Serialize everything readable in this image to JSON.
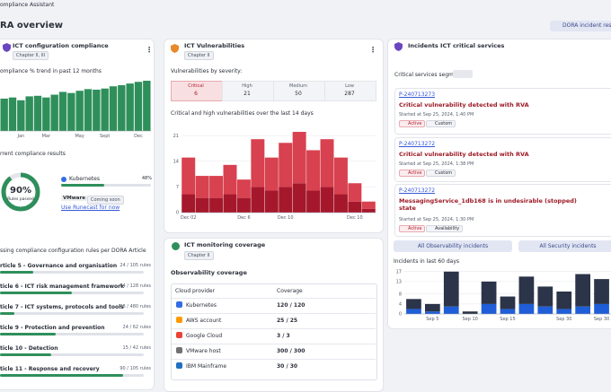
{
  "header": {
    "app": "ompliance Assistant",
    "title": "RA overview",
    "button": "DORA incident respo"
  },
  "config": {
    "title": "ICT configuration compliance",
    "chapter": "Chapter II, III",
    "trend_title": "ompliance % trend in past 12 months",
    "results_title": "rrent compliance results",
    "donut": {
      "value": 90,
      "value_label": "90%",
      "label": "Rules passed"
    },
    "platform": {
      "name": "Kubernetes",
      "value": 48,
      "value_label": "48%"
    },
    "vmware": {
      "name": "VMware",
      "badge": "Coming soon",
      "link": "Use Runecast for now"
    },
    "articles_title": "ssing compliance configuration rules per DORA Article",
    "articles": [
      {
        "name": "rticle 5 - Governance and organisation",
        "passed": 24,
        "total": 105,
        "label": "24 / 105 rules"
      },
      {
        "name": "ticle 6 - ICT risk management framework",
        "passed": 64,
        "total": 128,
        "label": "64 / 128 rules"
      },
      {
        "name": "ticle 7 - ICT systems, protocols and tools",
        "passed": 48,
        "total": 480,
        "label": "48 / 480 rules"
      },
      {
        "name": "ticle 9 - Protection and prevention",
        "passed": 24,
        "total": 62,
        "label": "24 / 62 rules"
      },
      {
        "name": "ticle 10 - Detection",
        "passed": 15,
        "total": 42,
        "label": "15 / 42 rules"
      },
      {
        "name": "ticle 11 - Response and recovery",
        "passed": 90,
        "total": 105,
        "label": "90 / 105 rules"
      }
    ]
  },
  "vulnerabilities": {
    "title": "ICT Vulnerabilities",
    "chapter": "Chapter II",
    "severity_title": "Vulnerabilities by severity:",
    "severity": [
      {
        "name": "Critical",
        "value": 6
      },
      {
        "name": "High",
        "value": 21
      },
      {
        "name": "Medium",
        "value": 50
      },
      {
        "name": "Low",
        "value": 287
      }
    ],
    "chart_title": "Critical and high vulnerabilities over the last 14 days"
  },
  "monitoring": {
    "title": "ICT monitoring coverage",
    "chapter": "Chapter II",
    "subtitle": "Observability coverage",
    "columns": [
      "Cloud provider",
      "Coverage"
    ],
    "rows": [
      [
        "Kubernetes",
        "120 / 120"
      ],
      [
        "AWS account",
        "25 / 25"
      ],
      [
        "Google Cloud",
        "3 / 3"
      ],
      [
        "VMware host",
        "300 / 300"
      ],
      [
        "IBM Mainframe",
        "30 / 30"
      ]
    ]
  },
  "incidents": {
    "title": "Incidents ICT critical services",
    "segment": "Critical services segment:",
    "items": [
      {
        "id": "P-240713273",
        "title": "Critical vulnerability detected with RVA",
        "started": "Started at Sep 25, 2024, 1:40 PM",
        "status": "Active",
        "tag": "Custom"
      },
      {
        "id": "P-240713272",
        "title": "Critical vulnerability detected with RVA",
        "started": "Started at Sep 25, 2024, 1:38 PM",
        "status": "Active",
        "tag": "Custom"
      },
      {
        "id": "P-240713272",
        "title": "MessagingService_1db168 is in undesirable (stopped) state",
        "started": "Started at Sep 25, 2024, 1:30 PM",
        "status": "Active",
        "tag": "Availability"
      }
    ],
    "buttons": [
      "All Observability incidents",
      "All Security incidents"
    ],
    "chart_title": "Incidents in last 60 days"
  },
  "chart_data": [
    {
      "type": "bar",
      "categories": [
        null,
        null,
        "Jan",
        null,
        null,
        "Mar",
        null,
        null,
        null,
        "May",
        null,
        null,
        "Sept",
        null,
        null,
        null,
        "Dec",
        null
      ],
      "values": [
        58,
        60,
        55,
        62,
        63,
        60,
        65,
        70,
        68,
        72,
        75,
        74,
        76,
        80,
        82,
        85,
        88,
        90
      ],
      "color": "#2f8f5b"
    },
    {
      "type": "stacked_bar",
      "categories": [
        "Dec 02",
        null,
        null,
        null,
        "Dec 6",
        null,
        null,
        "Dec 10",
        null,
        null,
        null,
        null,
        "Dec 10",
        null
      ],
      "series": [
        {
          "color": "#a5182b",
          "values": [
            5,
            4,
            4,
            5,
            4,
            7,
            6,
            7,
            8,
            6,
            7,
            5,
            3,
            1
          ]
        },
        {
          "color": "#d8414f",
          "values": [
            10,
            6,
            6,
            8,
            5,
            13,
            9,
            12,
            14,
            11,
            13,
            10,
            5,
            2
          ]
        }
      ],
      "ylim": [
        0,
        22
      ],
      "yticks": [
        0,
        7,
        14,
        21
      ],
      "grid": true
    },
    {
      "type": "stacked_bar",
      "categories": [
        null,
        "Sep 5",
        null,
        "Sep 10",
        null,
        "Sep 15",
        null,
        null,
        "Sep 30",
        null,
        "Sep 30"
      ],
      "series": [
        {
          "color": "#1f5ed8",
          "values": [
            2,
            1,
            3,
            0,
            4,
            2,
            4,
            3,
            2,
            3,
            4
          ]
        },
        {
          "color": "#2b3448",
          "values": [
            4,
            3,
            14,
            1,
            9,
            5,
            11,
            8,
            7,
            13,
            10
          ]
        }
      ],
      "ylim": [
        0,
        18
      ],
      "yticks": [
        0,
        4,
        8,
        13,
        17
      ],
      "grid": true
    }
  ]
}
